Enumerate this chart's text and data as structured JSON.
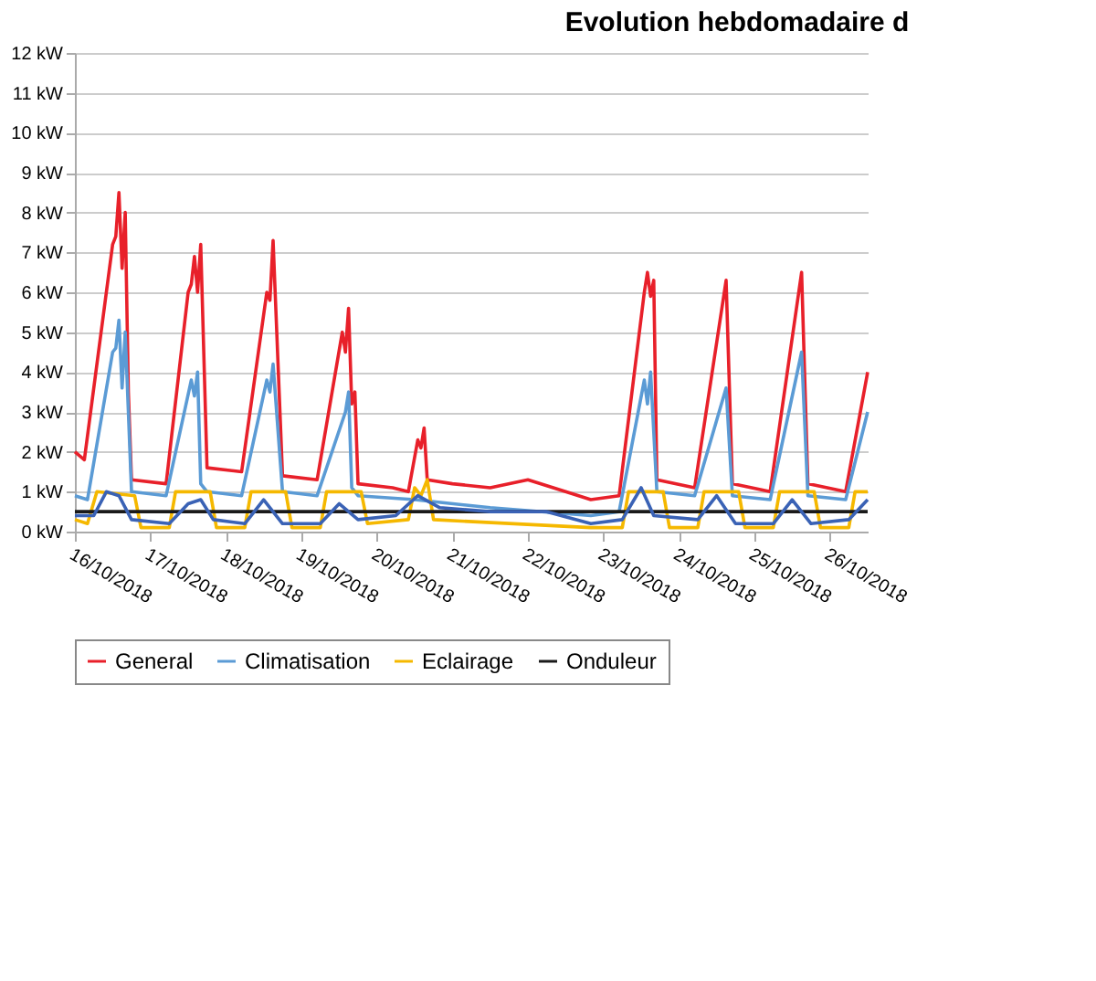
{
  "chart_data": {
    "type": "line",
    "title": "Evolution hebdomadaire d",
    "xlim": [
      "2018-10-16T00:00",
      "2018-10-26T12:00"
    ],
    "xticks": [
      {
        "value": "2018-10-16",
        "label": "16/10/2018"
      },
      {
        "value": "2018-10-17",
        "label": "17/10/2018"
      },
      {
        "value": "2018-10-18",
        "label": "18/10/2018"
      },
      {
        "value": "2018-10-19",
        "label": "19/10/2018"
      },
      {
        "value": "2018-10-20",
        "label": "20/10/2018"
      },
      {
        "value": "2018-10-21",
        "label": "21/10/2018"
      },
      {
        "value": "2018-10-22",
        "label": "22/10/2018"
      },
      {
        "value": "2018-10-23",
        "label": "23/10/2018"
      },
      {
        "value": "2018-10-24",
        "label": "24/10/2018"
      },
      {
        "value": "2018-10-25",
        "label": "25/10/2018"
      },
      {
        "value": "2018-10-26",
        "label": "26/10/2018"
      }
    ],
    "ylim": [
      0,
      12
    ],
    "yticks": [
      {
        "value": 0,
        "label": "0 kW"
      },
      {
        "value": 1,
        "label": "1 kW"
      },
      {
        "value": 2,
        "label": "2 kW"
      },
      {
        "value": 3,
        "label": "3 kW"
      },
      {
        "value": 4,
        "label": "4 kW"
      },
      {
        "value": 5,
        "label": "5 kW"
      },
      {
        "value": 6,
        "label": "6 kW"
      },
      {
        "value": 7,
        "label": "7 kW"
      },
      {
        "value": 8,
        "label": "8 kW"
      },
      {
        "value": 9,
        "label": "9 kW"
      },
      {
        "value": 10,
        "label": "10 kW"
      },
      {
        "value": 11,
        "label": "11 kW"
      },
      {
        "value": 12,
        "label": "12 kW"
      }
    ],
    "grid": "y",
    "legend": "bottom",
    "marker": "none",
    "line_style": "solid",
    "series": [
      {
        "name": "General",
        "color": "#e8202a",
        "x": [
          "2018-10-16T00:00",
          "2018-10-16T03:00",
          "2018-10-16T12:00",
          "2018-10-16T13:00",
          "2018-10-16T14:00",
          "2018-10-16T15:00",
          "2018-10-16T16:00",
          "2018-10-16T17:00",
          "2018-10-16T18:00",
          "2018-10-17T05:00",
          "2018-10-17T12:00",
          "2018-10-17T13:00",
          "2018-10-17T14:00",
          "2018-10-17T15:00",
          "2018-10-17T16:00",
          "2018-10-17T18:00",
          "2018-10-18T05:00",
          "2018-10-18T13:00",
          "2018-10-18T14:00",
          "2018-10-18T15:00",
          "2018-10-18T18:00",
          "2018-10-19T05:00",
          "2018-10-19T13:00",
          "2018-10-19T14:00",
          "2018-10-19T15:00",
          "2018-10-19T16:00",
          "2018-10-19T17:00",
          "2018-10-19T18:00",
          "2018-10-20T05:00",
          "2018-10-20T10:00",
          "2018-10-20T13:00",
          "2018-10-20T14:00",
          "2018-10-20T15:00",
          "2018-10-20T16:00",
          "2018-10-21T00:00",
          "2018-10-21T12:00",
          "2018-10-22T00:00",
          "2018-10-22T12:00",
          "2018-10-22T20:00",
          "2018-10-23T05:00",
          "2018-10-23T13:00",
          "2018-10-23T14:00",
          "2018-10-23T15:00",
          "2018-10-23T16:00",
          "2018-10-23T17:00",
          "2018-10-24T05:00",
          "2018-10-24T15:00",
          "2018-10-24T17:00",
          "2018-10-25T05:00",
          "2018-10-25T15:00",
          "2018-10-25T17:00",
          "2018-10-26T05:00",
          "2018-10-26T12:00"
        ],
        "values": [
          2.0,
          1.8,
          7.2,
          7.4,
          8.5,
          6.6,
          8.0,
          3.5,
          1.3,
          1.2,
          6.0,
          6.2,
          6.9,
          6.0,
          7.2,
          1.6,
          1.5,
          6.0,
          5.8,
          7.3,
          1.4,
          1.3,
          5.0,
          4.5,
          5.6,
          3.2,
          3.5,
          1.2,
          1.1,
          1.0,
          2.3,
          2.1,
          2.6,
          1.3,
          1.2,
          1.1,
          1.3,
          1.0,
          0.8,
          0.9,
          6.0,
          6.5,
          5.9,
          6.3,
          1.3,
          1.1,
          6.3,
          1.2,
          1.0,
          6.5,
          1.2,
          1.0,
          4.0
        ]
      },
      {
        "name": "Climatisation",
        "color": "#5b9bd5",
        "x": [
          "2018-10-16T00:00",
          "2018-10-16T04:00",
          "2018-10-16T12:00",
          "2018-10-16T13:00",
          "2018-10-16T14:00",
          "2018-10-16T15:00",
          "2018-10-16T16:00",
          "2018-10-16T18:00",
          "2018-10-17T05:00",
          "2018-10-17T13:00",
          "2018-10-17T14:00",
          "2018-10-17T15:00",
          "2018-10-17T16:00",
          "2018-10-17T18:00",
          "2018-10-18T05:00",
          "2018-10-18T13:00",
          "2018-10-18T14:00",
          "2018-10-18T15:00",
          "2018-10-18T18:00",
          "2018-10-19T05:00",
          "2018-10-19T14:00",
          "2018-10-19T15:00",
          "2018-10-19T16:00",
          "2018-10-19T18:00",
          "2018-10-20T12:00",
          "2018-10-21T12:00",
          "2018-10-22T20:00",
          "2018-10-23T05:00",
          "2018-10-23T13:00",
          "2018-10-23T14:00",
          "2018-10-23T15:00",
          "2018-10-23T17:00",
          "2018-10-24T05:00",
          "2018-10-24T15:00",
          "2018-10-24T17:00",
          "2018-10-25T05:00",
          "2018-10-25T15:00",
          "2018-10-25T17:00",
          "2018-10-26T05:00",
          "2018-10-26T12:00"
        ],
        "values": [
          0.9,
          0.8,
          4.5,
          4.6,
          5.3,
          3.6,
          5.0,
          1.0,
          0.9,
          3.8,
          3.4,
          4.0,
          1.2,
          1.0,
          0.9,
          3.8,
          3.5,
          4.2,
          1.0,
          0.9,
          3.0,
          3.5,
          1.1,
          0.9,
          0.8,
          0.6,
          0.4,
          0.5,
          3.8,
          3.2,
          4.0,
          1.0,
          0.9,
          3.6,
          0.9,
          0.8,
          4.5,
          0.9,
          0.8,
          3.0
        ]
      },
      {
        "name": "Eclairage",
        "color": "#f5b800",
        "x": [
          "2018-10-16T00:00",
          "2018-10-16T04:00",
          "2018-10-16T07:00",
          "2018-10-16T19:00",
          "2018-10-16T21:00",
          "2018-10-17T06:00",
          "2018-10-17T08:00",
          "2018-10-17T19:00",
          "2018-10-17T21:00",
          "2018-10-18T06:00",
          "2018-10-18T08:00",
          "2018-10-18T19:00",
          "2018-10-18T21:00",
          "2018-10-19T06:00",
          "2018-10-19T08:00",
          "2018-10-19T19:00",
          "2018-10-19T21:00",
          "2018-10-20T10:00",
          "2018-10-20T12:00",
          "2018-10-20T14:00",
          "2018-10-20T16:00",
          "2018-10-20T18:00",
          "2018-10-22T20:00",
          "2018-10-23T06:00",
          "2018-10-23T08:00",
          "2018-10-23T19:00",
          "2018-10-23T21:00",
          "2018-10-24T06:00",
          "2018-10-24T08:00",
          "2018-10-24T19:00",
          "2018-10-24T21:00",
          "2018-10-25T06:00",
          "2018-10-25T08:00",
          "2018-10-25T19:00",
          "2018-10-25T21:00",
          "2018-10-26T06:00",
          "2018-10-26T08:00",
          "2018-10-26T12:00"
        ],
        "values": [
          0.3,
          0.2,
          1.0,
          0.9,
          0.1,
          0.1,
          1.0,
          1.0,
          0.1,
          0.1,
          1.0,
          1.0,
          0.1,
          0.1,
          1.0,
          1.0,
          0.2,
          0.3,
          1.1,
          0.9,
          1.3,
          0.3,
          0.1,
          0.1,
          1.0,
          1.0,
          0.1,
          0.1,
          1.0,
          1.0,
          0.1,
          0.1,
          1.0,
          1.0,
          0.1,
          0.1,
          1.0,
          1.0
        ]
      },
      {
        "name": "Onduleur",
        "color": "#1a1a1a",
        "x": [
          "2018-10-16T00:00",
          "2018-10-26T12:00"
        ],
        "values": [
          0.5,
          0.5
        ]
      },
      {
        "color": "#3a62b5",
        "x": [
          "2018-10-16T00:00",
          "2018-10-16T06:00",
          "2018-10-16T10:00",
          "2018-10-16T14:00",
          "2018-10-16T18:00",
          "2018-10-17T06:00",
          "2018-10-17T12:00",
          "2018-10-17T16:00",
          "2018-10-17T20:00",
          "2018-10-18T06:00",
          "2018-10-18T12:00",
          "2018-10-18T18:00",
          "2018-10-19T06:00",
          "2018-10-19T12:00",
          "2018-10-19T18:00",
          "2018-10-20T06:00",
          "2018-10-20T13:00",
          "2018-10-20T20:00",
          "2018-10-21T12:00",
          "2018-10-22T06:00",
          "2018-10-22T20:00",
          "2018-10-23T06:00",
          "2018-10-23T12:00",
          "2018-10-23T16:00",
          "2018-10-24T06:00",
          "2018-10-24T12:00",
          "2018-10-24T18:00",
          "2018-10-25T06:00",
          "2018-10-25T12:00",
          "2018-10-25T18:00",
          "2018-10-26T06:00",
          "2018-10-26T12:00"
        ],
        "values": [
          0.4,
          0.4,
          1.0,
          0.9,
          0.3,
          0.2,
          0.7,
          0.8,
          0.3,
          0.2,
          0.8,
          0.2,
          0.2,
          0.7,
          0.3,
          0.4,
          0.9,
          0.6,
          0.5,
          0.5,
          0.2,
          0.3,
          1.1,
          0.4,
          0.3,
          0.9,
          0.2,
          0.2,
          0.8,
          0.2,
          0.3,
          0.8
        ]
      }
    ]
  }
}
